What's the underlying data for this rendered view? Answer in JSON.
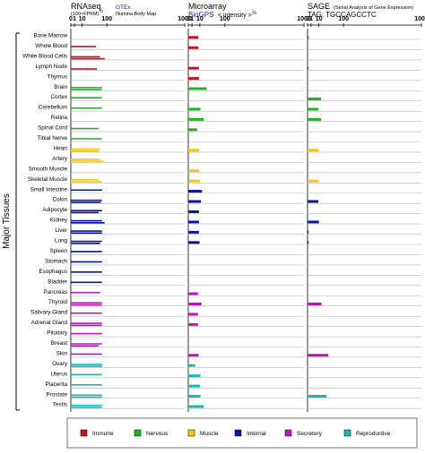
{
  "chart_data": {
    "type": "bar",
    "ylabel": "Major Tissues",
    "tissues": [
      {
        "name": "Bone Marrow",
        "group": "immune"
      },
      {
        "name": "Whole Blood",
        "group": "immune"
      },
      {
        "name": "White Blood Cells",
        "group": "immune"
      },
      {
        "name": "Lymph Node",
        "group": "immune"
      },
      {
        "name": "Thymus",
        "group": "immune"
      },
      {
        "name": "Brain",
        "group": "nervous"
      },
      {
        "name": "Cortex",
        "group": "nervous"
      },
      {
        "name": "Cerebellum",
        "group": "nervous"
      },
      {
        "name": "Retina",
        "group": "nervous"
      },
      {
        "name": "Spinal Cord",
        "group": "nervous"
      },
      {
        "name": "Tibial Nerve",
        "group": "nervous"
      },
      {
        "name": "Heart",
        "group": "muscle"
      },
      {
        "name": "Artery",
        "group": "muscle"
      },
      {
        "name": "Smooth Muscle",
        "group": "muscle"
      },
      {
        "name": "Skeletal Muscle",
        "group": "muscle"
      },
      {
        "name": "Small Intestine",
        "group": "internal"
      },
      {
        "name": "Colon",
        "group": "internal"
      },
      {
        "name": "Adipocyte",
        "group": "internal"
      },
      {
        "name": "Kidney",
        "group": "internal"
      },
      {
        "name": "Liver",
        "group": "internal"
      },
      {
        "name": "Lung",
        "group": "internal"
      },
      {
        "name": "Spleen",
        "group": "internal"
      },
      {
        "name": "Stomach",
        "group": "internal"
      },
      {
        "name": "Esophagus",
        "group": "internal"
      },
      {
        "name": "Bladder",
        "group": "internal"
      },
      {
        "name": "Pancreas",
        "group": "secretory"
      },
      {
        "name": "Thyroid",
        "group": "secretory"
      },
      {
        "name": "Salivary Gland",
        "group": "secretory"
      },
      {
        "name": "Adrenal Gland",
        "group": "secretory"
      },
      {
        "name": "Pituitary",
        "group": "secretory"
      },
      {
        "name": "Breast",
        "group": "secretory"
      },
      {
        "name": "Skin",
        "group": "secretory"
      },
      {
        "name": "Ovary",
        "group": "reproductive"
      },
      {
        "name": "Uterus",
        "group": "reproductive"
      },
      {
        "name": "Placenta",
        "group": "reproductive"
      },
      {
        "name": "Prostate",
        "group": "reproductive"
      },
      {
        "name": "Testis",
        "group": "reproductive"
      }
    ],
    "groups": [
      {
        "key": "immune",
        "label": "Immune",
        "color": "#c0151b"
      },
      {
        "key": "nervous",
        "label": "Nervous",
        "color": "#21b321"
      },
      {
        "key": "muscle",
        "label": "Muscle",
        "color": "#f5c518"
      },
      {
        "key": "internal",
        "label": "Internal",
        "color": "#0a14a0"
      },
      {
        "key": "secretory",
        "label": "Secretory",
        "color": "#b31bb3"
      },
      {
        "key": "reproductive",
        "label": "Reproductive",
        "color": "#1fb5b5"
      }
    ],
    "panels": [
      {
        "key": "rnaseq",
        "title": "RNAseq",
        "axis_label_html": "(100×FPKM)",
        "axis_label_exp": "½",
        "source_lines": [
          "GTEx",
          "Illumina Body Map"
        ],
        "xlim": [
          0,
          1000
        ],
        "scale": "sqrt",
        "tick_labels": [
          "0",
          "1",
          "10",
          "100",
          "1000"
        ],
        "tick_values": [
          0,
          1,
          10,
          100,
          1000
        ],
        "series": [
          {
            "name": "GTEx",
            "values": [
              null,
              49,
              66,
              null,
              null,
              75,
              74,
              74,
              null,
              59,
              74,
              66,
              66,
              null,
              59,
              75,
              75,
              75,
              75,
              75,
              75,
              75,
              75,
              75,
              75,
              66,
              75,
              75,
              75,
              75,
              75,
              75,
              75,
              75,
              75,
              75,
              75
            ]
          },
          {
            "name": "Illumina Body Map",
            "values": [
              null,
              null,
              89,
              52,
              null,
              74,
              null,
              null,
              null,
              null,
              null,
              59,
              82,
              null,
              75,
              null,
              70,
              60,
              88,
              75,
              66,
              null,
              null,
              null,
              null,
              null,
              74,
              null,
              74,
              null,
              59,
              null,
              75,
              null,
              null,
              75,
              75
            ]
          }
        ]
      },
      {
        "key": "microarray",
        "title": "Microarray",
        "source_lines": [
          "BioGPS"
        ],
        "axis_note": "< intensity >",
        "axis_note_exp": "⅔",
        "xlim": [
          0,
          1000
        ],
        "scale": "sqrt",
        "tick_labels": [
          "0",
          "1",
          "10",
          "100",
          "1000"
        ],
        "tick_values": [
          0,
          1,
          10,
          100,
          1000
        ],
        "series": [
          {
            "name": "BioGPS",
            "values": [
              7.5,
              7.5,
              null,
              8.5,
              8.5,
              25,
              null,
              11,
              18,
              6,
              null,
              9,
              null,
              9,
              10,
              14,
              12,
              8.5,
              8.5,
              8.5,
              9.5,
              null,
              null,
              null,
              null,
              7,
              13,
              7,
              7,
              null,
              null,
              8,
              3.6,
              11,
              10,
              11,
              18
            ]
          }
        ]
      },
      {
        "key": "sage",
        "title": "SAGE",
        "title_note": "(Serial Analysis of Gene Expression)",
        "tag_label": "TAG: TGCCAGCCTC",
        "xlim": [
          0,
          1000
        ],
        "scale": "sqrt",
        "tick_labels": [
          "0",
          "1",
          "10",
          "100",
          "1000"
        ],
        "tick_values": [
          0,
          1,
          10,
          100,
          1000
        ],
        "series": [
          {
            "name": "SAGE",
            "values": [
              0.01,
              null,
              null,
              0.01,
              null,
              null,
              14,
              9,
              14,
              null,
              null,
              9.5,
              null,
              null,
              10,
              null,
              9,
              null,
              10,
              0.01,
              0.01,
              null,
              null,
              null,
              null,
              null,
              15,
              null,
              null,
              null,
              null,
              33,
              null,
              null,
              null,
              28,
              null
            ]
          }
        ]
      }
    ],
    "grid": true,
    "legend_position": "bottom"
  }
}
